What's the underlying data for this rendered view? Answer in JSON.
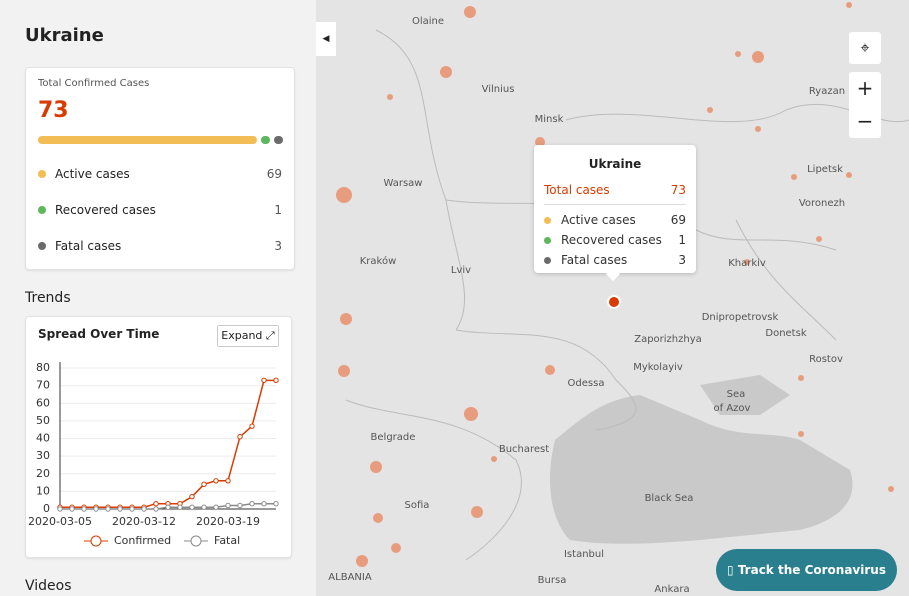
{
  "sidebar": {
    "title": "Ukraine",
    "summary": {
      "label": "Total Confirmed Cases",
      "total": 73,
      "rows": [
        {
          "label": "Active cases",
          "value": 69,
          "color": "#f2bd55"
        },
        {
          "label": "Recovered cases",
          "value": 1,
          "color": "#5cb85c"
        },
        {
          "label": "Fatal cases",
          "value": 3,
          "color": "#6b6b6b"
        }
      ]
    },
    "trends_heading": "Trends",
    "expand_button": "Expand",
    "videos_heading": "Videos"
  },
  "chart_data": {
    "type": "line",
    "title": "Spread Over Time",
    "x": [
      "2020-03-05",
      "2020-03-06",
      "2020-03-07",
      "2020-03-08",
      "2020-03-09",
      "2020-03-10",
      "2020-03-11",
      "2020-03-12",
      "2020-03-13",
      "2020-03-14",
      "2020-03-15",
      "2020-03-16",
      "2020-03-17",
      "2020-03-18",
      "2020-03-19",
      "2020-03-20",
      "2020-03-21",
      "2020-03-22",
      "2020-03-23"
    ],
    "xticks": [
      "2020-03-05",
      "2020-03-12",
      "2020-03-19"
    ],
    "series": [
      {
        "name": "Confirmed",
        "color": "#d83b01",
        "values": [
          1,
          1,
          1,
          1,
          1,
          1,
          1,
          1,
          3,
          3,
          3,
          7,
          14,
          16,
          16,
          41,
          47,
          73,
          73
        ]
      },
      {
        "name": "Fatal",
        "color": "#8a8a8a",
        "values": [
          0,
          0,
          0,
          0,
          0,
          0,
          0,
          0,
          0,
          1,
          1,
          1,
          1,
          1,
          2,
          2,
          3,
          3,
          3
        ]
      }
    ],
    "ylim": [
      0,
      80
    ],
    "yticks": [
      0,
      10,
      20,
      30,
      40,
      50,
      60,
      70,
      80
    ],
    "grid": true,
    "legend": "bottom"
  },
  "map": {
    "labels": [
      "Olaine",
      "Vilnius",
      "Minsk",
      "Ryazan",
      "Lipetsk",
      "Voronezh",
      "Warsaw",
      "Kraków",
      "Lviv",
      "Kharkiv",
      "Dnipropetrovsk",
      "Donetsk",
      "Zaporizhzhya",
      "Mykolayiv",
      "Odessa",
      "Rostov",
      "Sea",
      "of Azov",
      "Belgrade",
      "Bucharest",
      "Sofia",
      "Black Sea",
      "Istanbul",
      "Bursa",
      "Ankara",
      "ALBANIA"
    ],
    "tooltip": {
      "title": "Ukraine",
      "total_label": "Total cases",
      "total": 73,
      "rows": [
        {
          "label": "Active cases",
          "value": 69,
          "color": "#f2bd55"
        },
        {
          "label": "Recovered cases",
          "value": 1,
          "color": "#5cb85c"
        },
        {
          "label": "Fatal cases",
          "value": 3,
          "color": "#6b6b6b"
        }
      ]
    },
    "track_button": "Track the Coronavirus"
  }
}
